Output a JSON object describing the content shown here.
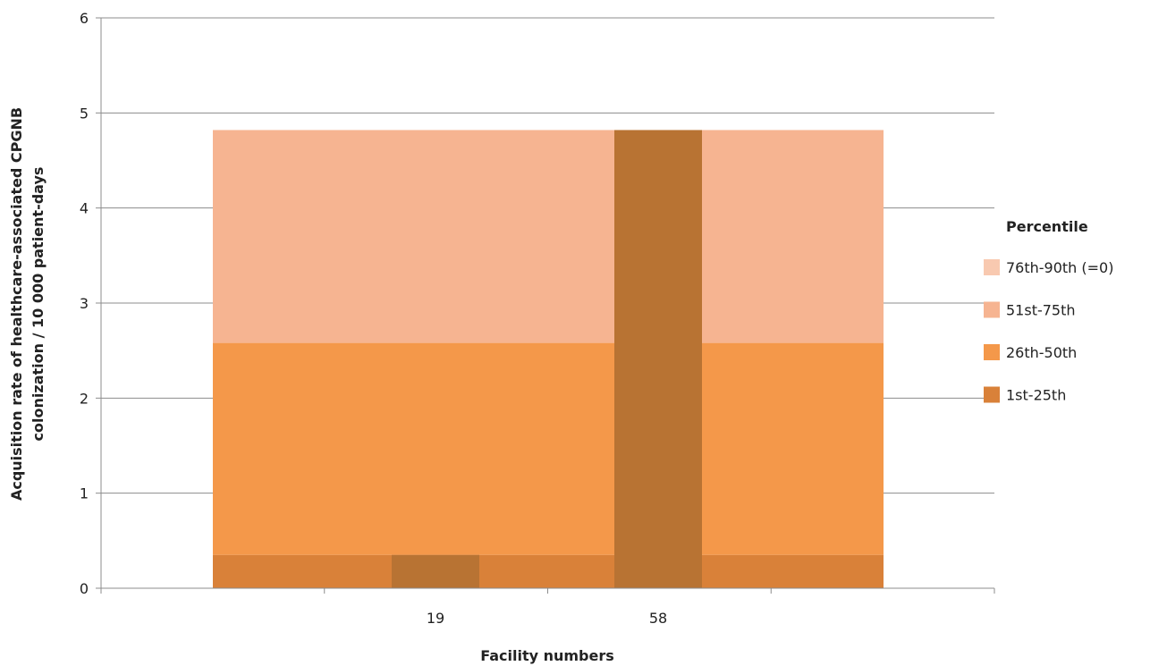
{
  "chart_data": {
    "type": "bar",
    "subtype": "stacked-background-bands",
    "title": "",
    "xlabel": "Facility numbers",
    "ylabel_line1": "Acquisition rate of healthcare-associated  CPGNB",
    "ylabel_line2": "colonization  / 10 000 patient-days",
    "ylim": [
      0,
      6
    ],
    "yticks": [
      "0",
      "1",
      "2",
      "3",
      "4",
      "5",
      "6"
    ],
    "grid": true,
    "legend_position": "right",
    "legend_title": "Percentile",
    "bands": [
      {
        "name": "76th-90th (=0)",
        "from": 4.82,
        "to": 4.82,
        "color": "#F8C9B0"
      },
      {
        "name": "51st-75th",
        "from": 2.58,
        "to": 4.82,
        "color": "#F6B491"
      },
      {
        "name": "26th-50th",
        "from": 0.35,
        "to": 2.58,
        "color": "#F4984A"
      },
      {
        "name": "1st-25th",
        "from": 0,
        "to": 0.35,
        "color": "#D98139"
      }
    ],
    "legend_order": [
      "76th-90th (=0)",
      "51st-75th",
      "26th-50th",
      "1st-25th"
    ],
    "categories": [
      "",
      "19",
      "",
      "58",
      ""
    ],
    "series": [
      {
        "name": "Facility",
        "color": "#B87333",
        "points": [
          {
            "facility": "19",
            "value": 0.35
          },
          {
            "facility": "58",
            "value": 4.82
          }
        ]
      }
    ]
  }
}
